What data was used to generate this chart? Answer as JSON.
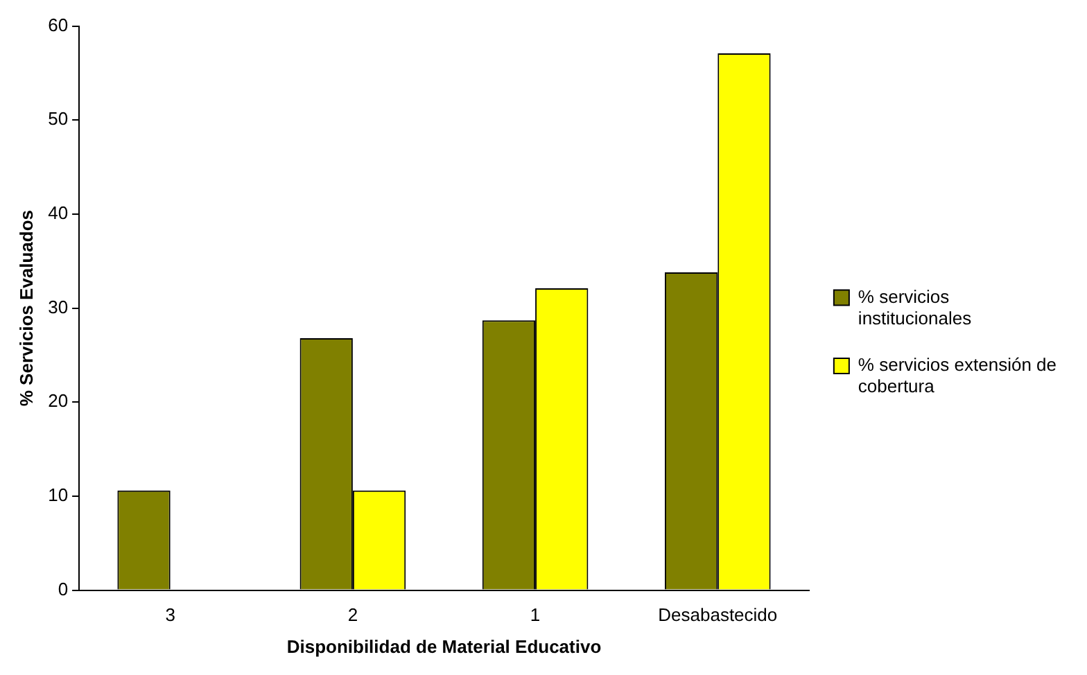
{
  "chart_data": {
    "type": "bar",
    "xlabel": "Disponibilidad de Material Educativo",
    "ylabel": "% Servicios Evaluados",
    "categories": [
      "3",
      "2",
      "1",
      "Desabastecido"
    ],
    "series": [
      {
        "name": "% servicios institucionales",
        "color": "#808000",
        "values": [
          10.6,
          26.8,
          28.7,
          33.8
        ]
      },
      {
        "name": "% servicios extensión de cobertura",
        "color": "#ffff00",
        "values": [
          null,
          10.6,
          32.1,
          57.1
        ]
      }
    ],
    "ylim": [
      0,
      60
    ],
    "yticks": [
      0,
      10,
      20,
      30,
      40,
      50,
      60
    ],
    "grid": false,
    "legend": "right"
  }
}
